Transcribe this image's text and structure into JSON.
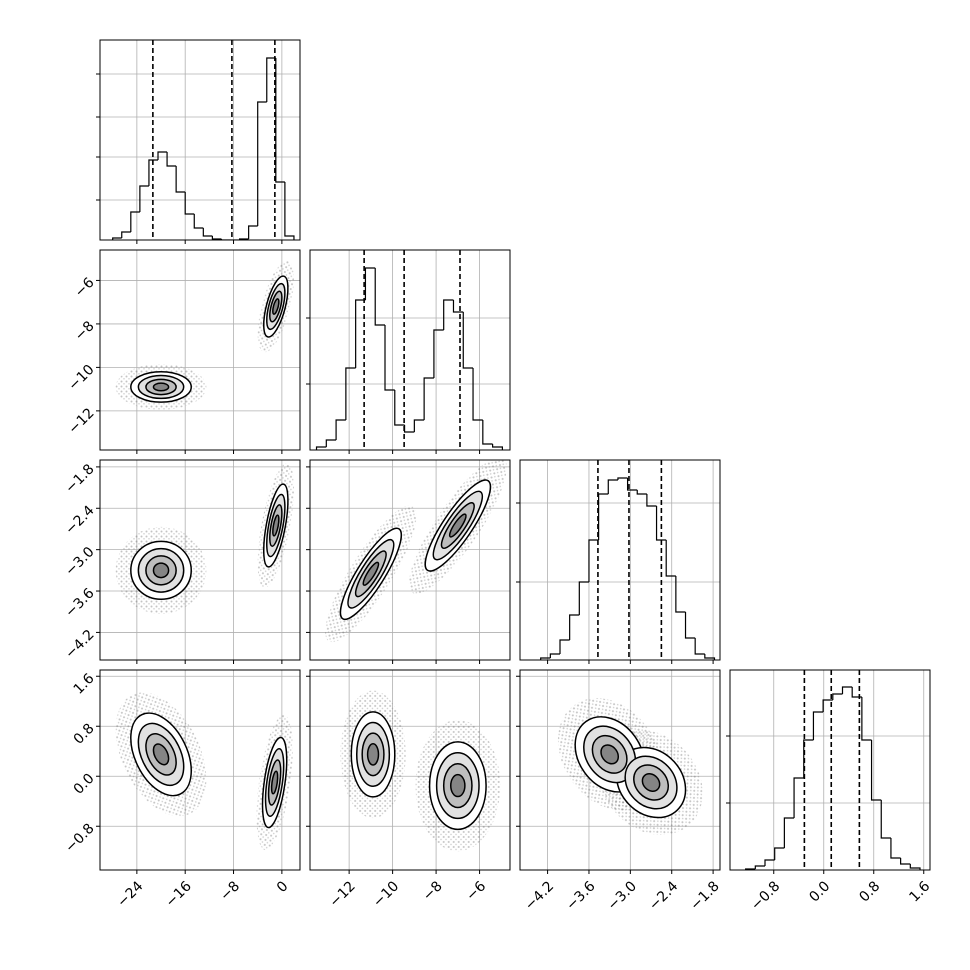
{
  "chart_data": {
    "type": "corner",
    "grid": true,
    "color": "#000000",
    "levels": [
      0.5,
      1,
      1.5,
      2
    ],
    "level_fills": [
      "#ffffff",
      "#e2e2e2",
      "#bdbdbd",
      "#858585"
    ],
    "params": [
      {
        "lim": [
          -30.1,
          3.0
        ],
        "ticks": [
          {
            "value": -24,
            "label": "−24"
          },
          {
            "value": -16,
            "label": "−16"
          },
          {
            "value": -8,
            "label": "−8"
          },
          {
            "value": 0,
            "label": "0"
          }
        ],
        "quantiles": [
          -21.35,
          -8.27,
          -1.16
        ],
        "bins": [
          -28,
          -26.5,
          -25,
          -23.5,
          -22,
          -20.5,
          -19,
          -17.5,
          -16,
          -14.5,
          -13,
          -11.5,
          -10,
          -8.5,
          -7,
          -5.5,
          -4,
          -2.5,
          -1,
          0.5,
          2
        ],
        "counts": [
          2,
          8,
          28,
          54,
          80,
          88,
          74,
          48,
          26,
          12,
          4,
          1,
          0,
          0,
          1,
          14,
          138,
          182,
          58,
          4
        ],
        "hist_ylim": [
          0,
          200
        ],
        "hist_ticks": [
          40,
          83,
          123,
          166
        ]
      },
      {
        "lim": [
          -13.8,
          -4.6
        ],
        "ticks": [
          {
            "value": -12,
            "label": "−12"
          },
          {
            "value": -10,
            "label": "−10"
          },
          {
            "value": -8,
            "label": "−8"
          },
          {
            "value": -6,
            "label": "−6"
          }
        ],
        "quantiles": [
          -11.31,
          -9.47,
          -6.9
        ],
        "bins": [
          -13.5,
          -13.05,
          -12.6,
          -12.15,
          -11.7,
          -11.25,
          -10.8,
          -10.35,
          -9.9,
          -9.45,
          -9.0,
          -8.55,
          -8.1,
          -7.65,
          -7.2,
          -6.75,
          -6.3,
          -5.85,
          -5.4,
          -4.95
        ],
        "counts": [
          3,
          10,
          30,
          82,
          150,
          182,
          125,
          60,
          25,
          18,
          30,
          72,
          120,
          150,
          138,
          82,
          30,
          6,
          3
        ],
        "hist_ylim": [
          0,
          200
        ],
        "hist_ticks": [
          66,
          132
        ]
      },
      {
        "lim": [
          -4.6,
          -1.7
        ],
        "ticks": [
          {
            "value": -4.2,
            "label": "−4.2"
          },
          {
            "value": -3.6,
            "label": "−3.6"
          },
          {
            "value": -3.0,
            "label": "−3.0"
          },
          {
            "value": -2.4,
            "label": "−2.4"
          },
          {
            "value": -1.8,
            "label": "−1.8"
          }
        ],
        "quantiles": [
          -3.47,
          -3.02,
          -2.55
        ],
        "bins": [
          -4.3,
          -4.16,
          -4.02,
          -3.88,
          -3.74,
          -3.6,
          -3.46,
          -3.32,
          -3.18,
          -3.04,
          -2.9,
          -2.76,
          -2.62,
          -2.48,
          -2.34,
          -2.2,
          -2.06,
          -1.92,
          -1.78
        ],
        "counts": [
          2,
          6,
          20,
          45,
          78,
          120,
          166,
          180,
          182,
          170,
          166,
          154,
          120,
          84,
          48,
          22,
          6,
          2
        ],
        "hist_ylim": [
          0,
          200
        ],
        "hist_ticks": [
          78,
          157
        ]
      },
      {
        "lim": [
          -1.5,
          1.7
        ],
        "ticks": [
          {
            "value": -0.8,
            "label": "−0.8"
          },
          {
            "value": 0.0,
            "label": "0.0"
          },
          {
            "value": 0.8,
            "label": "0.8"
          },
          {
            "value": 1.6,
            "label": "1.6"
          }
        ],
        "quantiles": [
          -0.31,
          0.12,
          0.57
        ],
        "bins": [
          -1.25,
          -1.095,
          -0.94,
          -0.785,
          -0.63,
          -0.475,
          -0.32,
          -0.165,
          -0.01,
          0.145,
          0.3,
          0.455,
          0.61,
          0.765,
          0.92,
          1.075,
          1.23,
          1.385,
          1.54
        ],
        "counts": [
          1,
          4,
          10,
          22,
          52,
          92,
          130,
          158,
          170,
          176,
          183,
          173,
          130,
          70,
          32,
          12,
          6,
          2
        ],
        "hist_ylim": [
          0,
          200
        ],
        "hist_ticks": [
          67,
          134
        ]
      }
    ],
    "pairs": [
      {
        "x_param": 0,
        "y_param": 1,
        "modes": [
          {
            "x": -20,
            "y": -10.9,
            "sx": 2.5,
            "sy": 0.35,
            "rho": 0
          },
          {
            "x": -1,
            "y": -7.2,
            "sx": 1.0,
            "sy": 0.7,
            "rho": 0.6
          }
        ]
      },
      {
        "x_param": 0,
        "y_param": 2,
        "modes": [
          {
            "x": -20,
            "y": -3.3,
            "sx": 2.5,
            "sy": 0.21,
            "rho": 0
          },
          {
            "x": -1,
            "y": -2.65,
            "sx": 1.0,
            "sy": 0.3,
            "rho": 0.6
          }
        ]
      },
      {
        "x_param": 1,
        "y_param": 2,
        "modes": [
          {
            "x": -11,
            "y": -3.35,
            "sx": 0.7,
            "sy": 0.33,
            "rho": 0.85
          },
          {
            "x": -7,
            "y": -2.65,
            "sx": 0.75,
            "sy": 0.33,
            "rho": 0.85
          }
        ]
      },
      {
        "x_param": 0,
        "y_param": 3,
        "modes": [
          {
            "x": -20,
            "y": 0.35,
            "sx": 2.5,
            "sy": 0.33,
            "rho": -0.4
          },
          {
            "x": -1.2,
            "y": -0.1,
            "sx": 1.0,
            "sy": 0.36,
            "rho": 0.5
          }
        ]
      },
      {
        "x_param": 1,
        "y_param": 3,
        "modes": [
          {
            "x": -10.9,
            "y": 0.35,
            "sx": 0.5,
            "sy": 0.34,
            "rho": 0
          },
          {
            "x": -7,
            "y": -0.15,
            "sx": 0.65,
            "sy": 0.35,
            "rho": 0
          }
        ]
      },
      {
        "x_param": 2,
        "y_param": 3,
        "modes": [
          {
            "x": -3.3,
            "y": 0.35,
            "sx": 0.25,
            "sy": 0.3,
            "rho": -0.25
          },
          {
            "x": -2.7,
            "y": -0.1,
            "sx": 0.25,
            "sy": 0.28,
            "rho": -0.2
          }
        ]
      }
    ]
  }
}
